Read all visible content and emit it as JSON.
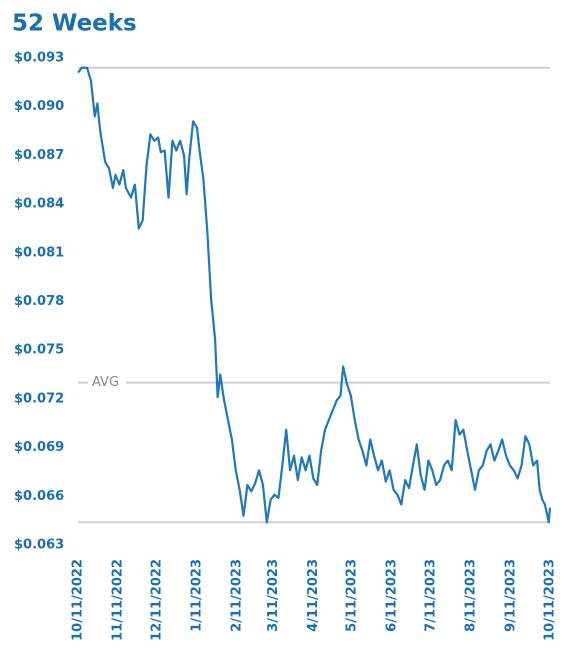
{
  "chart_data": {
    "type": "line",
    "title": "52 Weeks",
    "color": "#1f78b8",
    "x": [
      "2022-10-11",
      "2022-10-14",
      "2022-10-18",
      "2022-10-21",
      "2022-10-24",
      "2022-10-26",
      "2022-10-28",
      "2022-11-01",
      "2022-11-04",
      "2022-11-07",
      "2022-11-09",
      "2022-11-12",
      "2022-11-15",
      "2022-11-17",
      "2022-11-21",
      "2022-11-24",
      "2022-11-27",
      "2022-11-30",
      "2022-12-03",
      "2022-12-06",
      "2022-12-09",
      "2022-12-12",
      "2022-12-14",
      "2022-12-17",
      "2022-12-20",
      "2022-12-23",
      "2022-12-26",
      "2022-12-29",
      "2023-01-01",
      "2023-01-03",
      "2023-01-05",
      "2023-01-08",
      "2023-01-11",
      "2023-01-13",
      "2023-01-16",
      "2023-01-19",
      "2023-01-22",
      "2023-01-25",
      "2023-01-27",
      "2023-01-29",
      "2023-02-01",
      "2023-02-04",
      "2023-02-07",
      "2023-02-10",
      "2023-02-13",
      "2023-02-16",
      "2023-02-19",
      "2023-02-22",
      "2023-02-25",
      "2023-02-28",
      "2023-03-03",
      "2023-03-06",
      "2023-03-09",
      "2023-03-12",
      "2023-03-15",
      "2023-03-18",
      "2023-03-21",
      "2023-03-24",
      "2023-03-27",
      "2023-03-30",
      "2023-04-02",
      "2023-04-05",
      "2023-04-08",
      "2023-04-11",
      "2023-04-14",
      "2023-04-17",
      "2023-04-20",
      "2023-04-23",
      "2023-04-26",
      "2023-04-29",
      "2023-05-02",
      "2023-05-04",
      "2023-05-07",
      "2023-05-10",
      "2023-05-13",
      "2023-05-16",
      "2023-05-19",
      "2023-05-22",
      "2023-05-25",
      "2023-05-28",
      "2023-05-31",
      "2023-06-03",
      "2023-06-06",
      "2023-06-09",
      "2023-06-12",
      "2023-06-15",
      "2023-06-18",
      "2023-06-21",
      "2023-06-24",
      "2023-06-27",
      "2023-06-30",
      "2023-07-03",
      "2023-07-06",
      "2023-07-09",
      "2023-07-12",
      "2023-07-15",
      "2023-07-18",
      "2023-07-21",
      "2023-07-24",
      "2023-07-27",
      "2023-07-30",
      "2023-08-02",
      "2023-08-05",
      "2023-08-08",
      "2023-08-11",
      "2023-08-14",
      "2023-08-17",
      "2023-08-20",
      "2023-08-23",
      "2023-08-26",
      "2023-08-29",
      "2023-09-01",
      "2023-09-04",
      "2023-09-07",
      "2023-09-10",
      "2023-09-13",
      "2023-09-16",
      "2023-09-19",
      "2023-09-22",
      "2023-09-25",
      "2023-09-28",
      "2023-10-01",
      "2023-10-03",
      "2023-10-05",
      "2023-10-07",
      "2023-10-09",
      "2023-10-10",
      "2023-10-11"
    ],
    "values": [
      0.0921,
      0.0924,
      0.0924,
      0.0916,
      0.0894,
      0.0902,
      0.0886,
      0.0866,
      0.0862,
      0.085,
      0.0858,
      0.0852,
      0.0861,
      0.085,
      0.0844,
      0.0852,
      0.0825,
      0.083,
      0.0864,
      0.0883,
      0.0879,
      0.0881,
      0.0872,
      0.0873,
      0.0844,
      0.0879,
      0.0873,
      0.0879,
      0.087,
      0.0846,
      0.0868,
      0.0891,
      0.0887,
      0.0873,
      0.0855,
      0.0823,
      0.0781,
      0.0757,
      0.0721,
      0.0735,
      0.0719,
      0.0707,
      0.0695,
      0.0676,
      0.0664,
      0.0648,
      0.0667,
      0.0663,
      0.0668,
      0.0676,
      0.0667,
      0.0644,
      0.0658,
      0.0661,
      0.0659,
      0.0679,
      0.0701,
      0.0676,
      0.0685,
      0.067,
      0.0684,
      0.0676,
      0.0685,
      0.0671,
      0.0667,
      0.0688,
      0.0701,
      0.0707,
      0.0713,
      0.0719,
      0.0722,
      0.074,
      0.0729,
      0.0722,
      0.0707,
      0.0695,
      0.0688,
      0.0679,
      0.0695,
      0.0685,
      0.0676,
      0.0682,
      0.0669,
      0.0676,
      0.0664,
      0.0661,
      0.0655,
      0.067,
      0.0665,
      0.0679,
      0.0692,
      0.0673,
      0.0664,
      0.0682,
      0.0676,
      0.0667,
      0.067,
      0.0679,
      0.0682,
      0.0676,
      0.0707,
      0.0698,
      0.0701,
      0.0688,
      0.0676,
      0.0664,
      0.0676,
      0.0679,
      0.0688,
      0.0692,
      0.0682,
      0.0688,
      0.0695,
      0.0685,
      0.0679,
      0.0676,
      0.0671,
      0.0679,
      0.0697,
      0.0692,
      0.0679,
      0.0682,
      0.0664,
      0.0658,
      0.0655,
      0.0648,
      0.0644,
      0.0653
    ],
    "xlim": [
      "2022-10-11",
      "2023-10-11"
    ],
    "xticks": [
      {
        "value": "2022-10-11",
        "label": "10/11/2022"
      },
      {
        "value": "2022-11-11",
        "label": "11/11/2022"
      },
      {
        "value": "2022-12-11",
        "label": "12/11/2022"
      },
      {
        "value": "2023-01-11",
        "label": "1/11/2023"
      },
      {
        "value": "2023-02-11",
        "label": "2/11/2023"
      },
      {
        "value": "2023-03-11",
        "label": "3/11/2023"
      },
      {
        "value": "2023-04-11",
        "label": "4/11/2023"
      },
      {
        "value": "2023-05-11",
        "label": "5/11/2023"
      },
      {
        "value": "2023-06-11",
        "label": "6/11/2023"
      },
      {
        "value": "2023-07-11",
        "label": "7/11/2023"
      },
      {
        "value": "2023-08-11",
        "label": "8/11/2023"
      },
      {
        "value": "2023-09-11",
        "label": "9/11/2023"
      },
      {
        "value": "2023-10-11",
        "label": "10/11/2023"
      }
    ],
    "ylim": [
      0.063,
      0.093
    ],
    "yticks": [
      {
        "value": 0.093,
        "label": "$0.093"
      },
      {
        "value": 0.09,
        "label": "$0.090"
      },
      {
        "value": 0.087,
        "label": "$0.087"
      },
      {
        "value": 0.084,
        "label": "$0.084"
      },
      {
        "value": 0.081,
        "label": "$0.081"
      },
      {
        "value": 0.078,
        "label": "$0.078"
      },
      {
        "value": 0.075,
        "label": "$0.075"
      },
      {
        "value": 0.072,
        "label": "$0.072"
      },
      {
        "value": 0.069,
        "label": "$0.069"
      },
      {
        "value": 0.066,
        "label": "$0.066"
      },
      {
        "value": 0.063,
        "label": "$0.063"
      }
    ],
    "reference_lines": [
      {
        "value": 0.0924
      },
      {
        "value": 0.073,
        "label": "AVG"
      },
      {
        "value": 0.0644
      }
    ]
  }
}
